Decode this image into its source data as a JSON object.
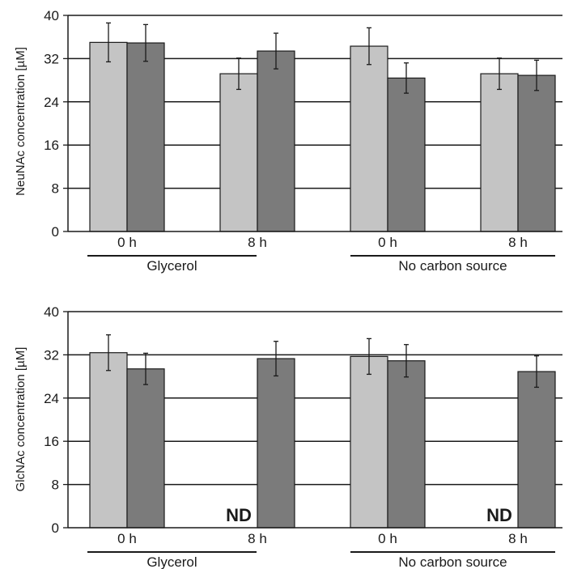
{
  "colors": {
    "light": "#c4c4c4",
    "dark": "#7b7b7b",
    "ink": "#1a1a1a"
  },
  "chart_data": [
    {
      "type": "bar",
      "ylabel": "NeuNAc concentration [µM]",
      "ylim": [
        0,
        40
      ],
      "yticks": [
        0,
        8,
        16,
        24,
        32,
        40
      ],
      "grid": true,
      "categories": [
        "0 h",
        "8 h",
        "0 h",
        "8 h"
      ],
      "groups": [
        {
          "label": "Glycerol",
          "span": [
            0,
            1
          ]
        },
        {
          "label": "No carbon source",
          "span": [
            2,
            3
          ]
        }
      ],
      "series": [
        {
          "color": "light",
          "values": [
            35.0,
            29.2,
            34.3,
            29.2
          ],
          "errors": [
            3.6,
            2.9,
            3.4,
            2.9
          ]
        },
        {
          "color": "dark",
          "values": [
            34.9,
            33.4,
            28.4,
            28.9
          ],
          "errors": [
            3.4,
            3.3,
            2.8,
            2.8
          ]
        }
      ],
      "annotations": []
    },
    {
      "type": "bar",
      "ylabel": "GlcNAc concentration [µM]",
      "ylim": [
        0,
        40
      ],
      "yticks": [
        0,
        8,
        16,
        24,
        32,
        40
      ],
      "grid": true,
      "categories": [
        "0 h",
        "8 h",
        "0 h",
        "8 h"
      ],
      "groups": [
        {
          "label": "Glycerol",
          "span": [
            0,
            1
          ]
        },
        {
          "label": "No carbon source",
          "span": [
            2,
            3
          ]
        }
      ],
      "series": [
        {
          "color": "light",
          "values": [
            32.4,
            null,
            31.7,
            null
          ],
          "errors": [
            3.3,
            null,
            3.3,
            null
          ]
        },
        {
          "color": "dark",
          "values": [
            29.4,
            31.3,
            30.9,
            28.9
          ],
          "errors": [
            2.9,
            3.2,
            3.0,
            2.9
          ]
        }
      ],
      "annotations": [
        {
          "text": "ND",
          "category": 1,
          "series": 0
        },
        {
          "text": "ND",
          "category": 3,
          "series": 0
        }
      ]
    }
  ]
}
